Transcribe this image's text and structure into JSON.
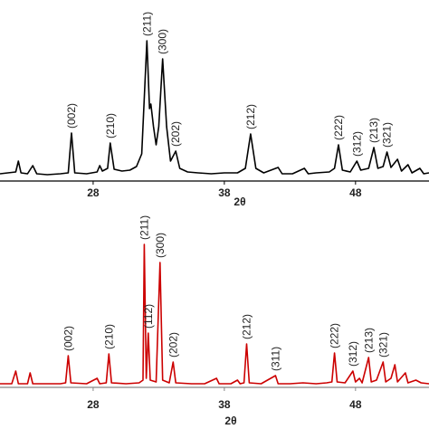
{
  "chart_data": [
    {
      "type": "line",
      "xlabel": "2θ",
      "xlim": [
        20.9,
        53.6
      ],
      "xticks": [
        28,
        38,
        48
      ],
      "ylim": [
        0,
        160
      ],
      "axis_color": "#000000",
      "x": [
        20.9,
        21.5,
        22.1,
        22.3,
        22.5,
        23.0,
        23.4,
        23.7,
        24.5,
        25.5,
        26.1,
        26.35,
        26.6,
        27.5,
        28.3,
        28.5,
        28.7,
        29.1,
        29.3,
        29.6,
        30.2,
        30.8,
        31.3,
        31.7,
        32.1,
        32.3,
        32.4,
        32.6,
        32.8,
        33.0,
        33.3,
        33.6,
        33.9,
        34.3,
        34.6,
        35.2,
        36.0,
        37.0,
        38.0,
        39.0,
        39.6,
        40.0,
        40.4,
        41.0,
        42.1,
        42.4,
        43.2,
        44.1,
        44.4,
        45.0,
        46.0,
        46.4,
        46.7,
        47.0,
        47.6,
        48.1,
        48.4,
        49.0,
        49.4,
        49.7,
        50.1,
        50.4,
        50.7,
        51.2,
        51.5,
        52.0,
        52.3,
        52.9,
        53.2,
        53.6
      ],
      "series": [
        {
          "color": "#000000",
          "values": [
            8,
            9,
            10,
            22,
            9,
            8,
            17,
            8,
            7,
            8,
            9,
            53,
            9,
            8,
            10,
            17,
            11,
            14,
            42,
            13,
            11,
            12,
            16,
            30,
            155,
            80,
            85,
            60,
            40,
            60,
            135,
            60,
            22,
            33,
            14,
            10,
            9,
            8,
            9,
            9,
            14,
            52,
            14,
            9,
            15,
            8,
            8,
            14,
            8,
            9,
            10,
            14,
            40,
            12,
            10,
            22,
            12,
            14,
            37,
            14,
            16,
            32,
            15,
            24,
            11,
            18,
            9,
            14,
            8,
            9
          ]
        }
      ],
      "annotations": [
        {
          "text": "(002)",
          "x": 26.35
        },
        {
          "text": "(210)",
          "x": 29.3
        },
        {
          "text": "(211)",
          "x": 32.1
        },
        {
          "text": "(300)",
          "x": 33.3
        },
        {
          "text": "(202)",
          "x": 34.3
        },
        {
          "text": "(212)",
          "x": 40.0
        },
        {
          "text": "(222)",
          "x": 46.7
        },
        {
          "text": "(312)",
          "x": 48.1
        },
        {
          "text": "(213)",
          "x": 49.4
        },
        {
          "text": "(321)",
          "x": 50.4
        }
      ]
    },
    {
      "type": "line",
      "xlabel": "2θ",
      "xlim": [
        20.9,
        53.6
      ],
      "xticks": [
        28,
        38,
        48
      ],
      "ylim": [
        0,
        160
      ],
      "axis_color": "#888888",
      "x": [
        20.9,
        21.8,
        22.1,
        22.3,
        23.0,
        23.2,
        23.4,
        24.5,
        25.5,
        25.9,
        26.1,
        26.3,
        27.5,
        28.3,
        28.5,
        29.0,
        29.2,
        29.4,
        30.5,
        31.5,
        31.8,
        31.9,
        32.05,
        32.2,
        32.35,
        32.8,
        33.1,
        33.3,
        33.8,
        34.1,
        34.3,
        35.5,
        36.5,
        37.4,
        37.6,
        38.5,
        39.0,
        39.2,
        39.5,
        39.7,
        39.9,
        40.8,
        41.9,
        42.1,
        43.0,
        44.0,
        45.0,
        45.8,
        46.2,
        46.4,
        46.6,
        47.2,
        47.8,
        48.0,
        48.3,
        48.5,
        49.0,
        49.2,
        49.6,
        50.1,
        50.3,
        50.7,
        51.0,
        51.2,
        51.8,
        52.0,
        52.6,
        53.0,
        53.6
      ],
      "series": [
        {
          "color": "#cc0000",
          "values": [
            4,
            4,
            18,
            4,
            4,
            16,
            4,
            4,
            4,
            5,
            35,
            5,
            4,
            10,
            4,
            5,
            37,
            5,
            4,
            5,
            8,
            158,
            10,
            60,
            8,
            6,
            138,
            8,
            5,
            28,
            5,
            4,
            4,
            10,
            4,
            4,
            8,
            4,
            5,
            48,
            5,
            4,
            13,
            4,
            4,
            5,
            4,
            5,
            6,
            38,
            6,
            5,
            18,
            6,
            10,
            5,
            33,
            6,
            8,
            28,
            6,
            10,
            25,
            6,
            16,
            5,
            8,
            5,
            4
          ]
        }
      ],
      "annotations": [
        {
          "text": "(002)",
          "x": 26.1
        },
        {
          "text": "(210)",
          "x": 29.2
        },
        {
          "text": "(211)",
          "x": 31.9
        },
        {
          "text": "(112)",
          "x": 32.2
        },
        {
          "text": "(300)",
          "x": 33.1
        },
        {
          "text": "(202)",
          "x": 34.1
        },
        {
          "text": "(212)",
          "x": 39.7
        },
        {
          "text": "(311)",
          "x": 41.9
        },
        {
          "text": "(222)",
          "x": 46.4
        },
        {
          "text": "(312)",
          "x": 47.8
        },
        {
          "text": "(213)",
          "x": 49.0
        },
        {
          "text": "(321)",
          "x": 50.1
        }
      ]
    }
  ]
}
